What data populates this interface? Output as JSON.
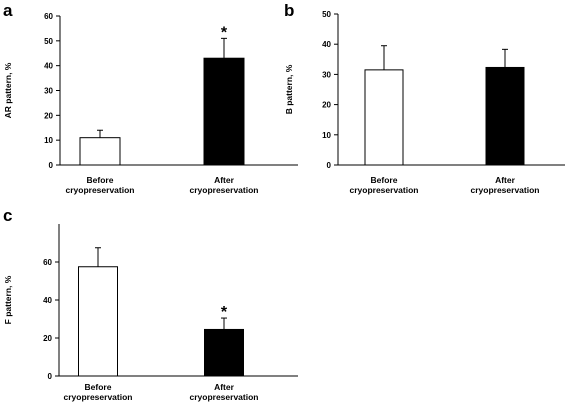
{
  "chart_data": [
    {
      "type": "bar",
      "panel": "a",
      "ylabel": "AR pattern, %",
      "ylim": [
        0,
        60
      ],
      "yticks": [
        0,
        10,
        20,
        30,
        40,
        50,
        60
      ],
      "categories": [
        [
          "Before",
          "cryopreservation"
        ],
        [
          "After",
          "cryopreservation"
        ]
      ],
      "values": [
        11,
        43
      ],
      "errors": [
        3,
        8
      ],
      "fill": [
        "#ffffff",
        "#000000"
      ],
      "annotations": [
        "",
        "*"
      ]
    },
    {
      "type": "bar",
      "panel": "b",
      "ylabel": "B pattern, %",
      "ylim": [
        0,
        50
      ],
      "yticks": [
        0,
        10,
        20,
        30,
        40,
        50
      ],
      "categories": [
        [
          "Before",
          "cryopreservation"
        ],
        [
          "After",
          "cryopreservation"
        ]
      ],
      "values": [
        31.5,
        32.3
      ],
      "errors": [
        8,
        6
      ],
      "fill": [
        "#ffffff",
        "#000000"
      ],
      "annotations": [
        "",
        ""
      ]
    },
    {
      "type": "bar",
      "panel": "c",
      "ylabel": "F pattern, %",
      "ylim": [
        0,
        80
      ],
      "yticks": [
        0,
        20,
        40,
        60
      ],
      "categories": [
        [
          "Before",
          "cryopreservation"
        ],
        [
          "After",
          "cryopreservation"
        ]
      ],
      "values": [
        57.5,
        24.5
      ],
      "errors": [
        10,
        6
      ],
      "fill": [
        "#ffffff",
        "#000000"
      ],
      "annotations": [
        "",
        "*"
      ]
    }
  ]
}
